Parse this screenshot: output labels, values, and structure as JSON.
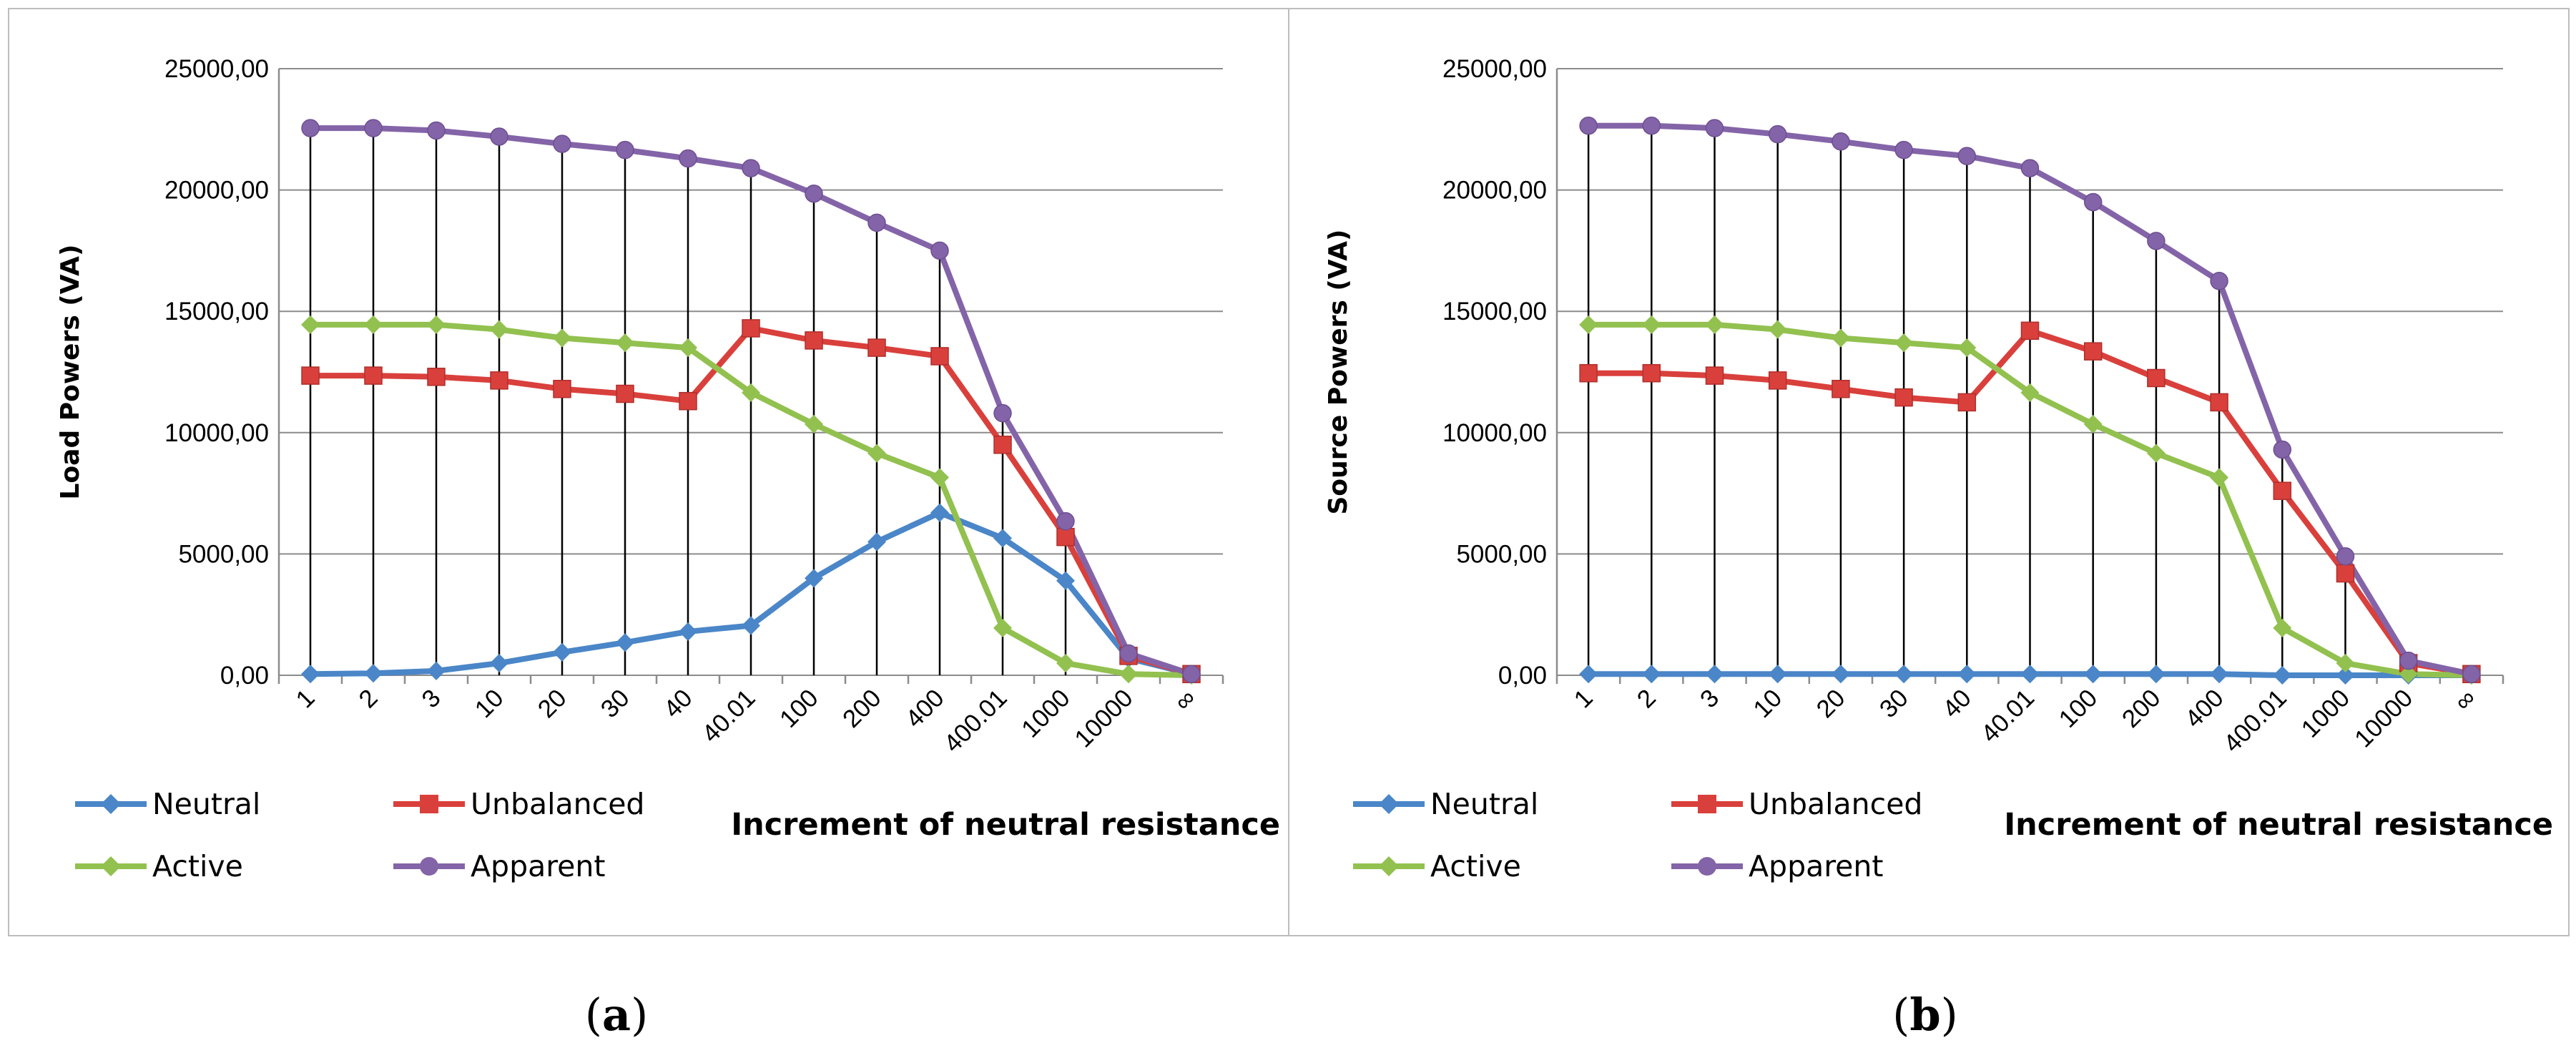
{
  "chart_data": [
    {
      "type": "line",
      "panel_label": "(a)",
      "ylabel": "Load Powers (VA)",
      "xlabel": "Increment of neutral resistance",
      "ylim": [
        0,
        25000
      ],
      "yticks": [
        "0,00",
        "5000,00",
        "10000,00",
        "15000,00",
        "20000,00",
        "25000,00"
      ],
      "categories": [
        "1",
        "2",
        "3",
        "10",
        "20",
        "30",
        "40",
        "40.01",
        "100",
        "200",
        "400",
        "400.01",
        "1000",
        "10000",
        "∞"
      ],
      "series": [
        {
          "name": "Neutral",
          "color": "#4a86c8",
          "marker": "diamond",
          "values": [
            50,
            80,
            180,
            500,
            950,
            1350,
            1800,
            2050,
            4000,
            5500,
            6700,
            5650,
            3900,
            700,
            50
          ]
        },
        {
          "name": "Unbalanced",
          "color": "#d9403c",
          "marker": "square",
          "values": [
            12350,
            12350,
            12300,
            12150,
            11800,
            11600,
            11300,
            14300,
            13800,
            13500,
            13150,
            9500,
            5700,
            800,
            50
          ]
        },
        {
          "name": "Active",
          "color": "#92c14f",
          "marker": "diamond",
          "values": [
            14450,
            14450,
            14450,
            14250,
            13900,
            13700,
            13500,
            11650,
            10350,
            9150,
            8150,
            1950,
            500,
            50,
            0
          ]
        },
        {
          "name": "Apparent",
          "color": "#8464a8",
          "marker": "circle",
          "values": [
            22550,
            22550,
            22450,
            22200,
            21900,
            21650,
            21300,
            20900,
            19850,
            18650,
            17500,
            10800,
            6350,
            900,
            50
          ]
        }
      ]
    },
    {
      "type": "line",
      "panel_label": "(b)",
      "ylabel": "Source Powers (VA)",
      "xlabel": "Increment of neutral resistance",
      "ylim": [
        0,
        25000
      ],
      "yticks": [
        "0,00",
        "5000,00",
        "10000,00",
        "15000,00",
        "20000,00",
        "25000,00"
      ],
      "categories": [
        "1",
        "2",
        "3",
        "10",
        "20",
        "30",
        "40",
        "40.01",
        "100",
        "200",
        "400",
        "400.01",
        "1000",
        "10000",
        "∞"
      ],
      "series": [
        {
          "name": "Neutral",
          "color": "#4a86c8",
          "marker": "diamond",
          "values": [
            50,
            50,
            50,
            50,
            50,
            50,
            50,
            50,
            50,
            50,
            50,
            0,
            0,
            0,
            0
          ]
        },
        {
          "name": "Unbalanced",
          "color": "#d9403c",
          "marker": "square",
          "values": [
            12450,
            12450,
            12350,
            12150,
            11800,
            11450,
            11250,
            14200,
            13350,
            12250,
            11250,
            7600,
            4200,
            500,
            50
          ]
        },
        {
          "name": "Active",
          "color": "#92c14f",
          "marker": "diamond",
          "values": [
            14450,
            14450,
            14450,
            14250,
            13900,
            13700,
            13500,
            11650,
            10350,
            9150,
            8150,
            1950,
            500,
            50,
            0
          ]
        },
        {
          "name": "Apparent",
          "color": "#8464a8",
          "marker": "circle",
          "values": [
            22650,
            22650,
            22550,
            22300,
            22000,
            21650,
            21400,
            20900,
            19500,
            17900,
            16250,
            9300,
            4900,
            600,
            50
          ]
        }
      ]
    }
  ]
}
